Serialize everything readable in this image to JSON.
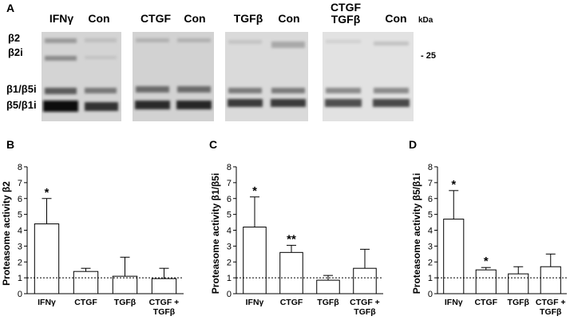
{
  "panel_a": {
    "letter": "A",
    "lanes": [
      "IFNγ",
      "Con",
      "CTGF",
      "Con",
      "TGFβ",
      "Con",
      "CTGF TGFβ",
      "Con"
    ],
    "band_labels": [
      "β2",
      "β2i",
      "β1/β5i",
      "β5/β1i"
    ],
    "unit": "kDa",
    "marker": "- 25"
  },
  "chart_data": [
    {
      "type": "bar",
      "panel": "B",
      "ylabel": "Proteasome activity β2",
      "categories": [
        "IFNγ",
        "CTGF",
        "TGFβ",
        "CTGF + TGFβ"
      ],
      "values": [
        4.4,
        1.4,
        1.1,
        0.95
      ],
      "errors": [
        1.6,
        0.2,
        1.2,
        0.65
      ],
      "significance": [
        "*",
        "",
        "",
        ""
      ],
      "ylim": [
        0,
        8
      ],
      "yticks": [
        "0",
        "1",
        "2",
        "3",
        "4",
        "5",
        "6",
        "7",
        "8"
      ],
      "reference_line": 1
    },
    {
      "type": "bar",
      "panel": "C",
      "ylabel": "Proteasome activity β1/β5i",
      "categories": [
        "IFNγ",
        "CTGF",
        "TGFβ",
        "CTGF + TGFβ"
      ],
      "values": [
        4.2,
        2.6,
        0.85,
        1.6
      ],
      "errors": [
        1.9,
        0.45,
        0.3,
        1.2
      ],
      "significance": [
        "*",
        "**",
        "",
        ""
      ],
      "ylim": [
        0,
        8
      ],
      "yticks": [
        "0",
        "1",
        "2",
        "3",
        "4",
        "5",
        "6",
        "7",
        "8"
      ],
      "reference_line": 1
    },
    {
      "type": "bar",
      "panel": "D",
      "ylabel": "Proteasome activity β5/β1i",
      "categories": [
        "IFNγ",
        "CTGF",
        "TGFβ",
        "CTGF + TGFβ"
      ],
      "values": [
        4.7,
        1.5,
        1.25,
        1.7
      ],
      "errors": [
        1.8,
        0.15,
        0.45,
        0.8
      ],
      "significance": [
        "*",
        "*",
        "",
        ""
      ],
      "ylim": [
        0,
        8
      ],
      "yticks": [
        "0",
        "1",
        "2",
        "3",
        "4",
        "5",
        "6",
        "7",
        "8"
      ],
      "reference_line": 1
    }
  ]
}
